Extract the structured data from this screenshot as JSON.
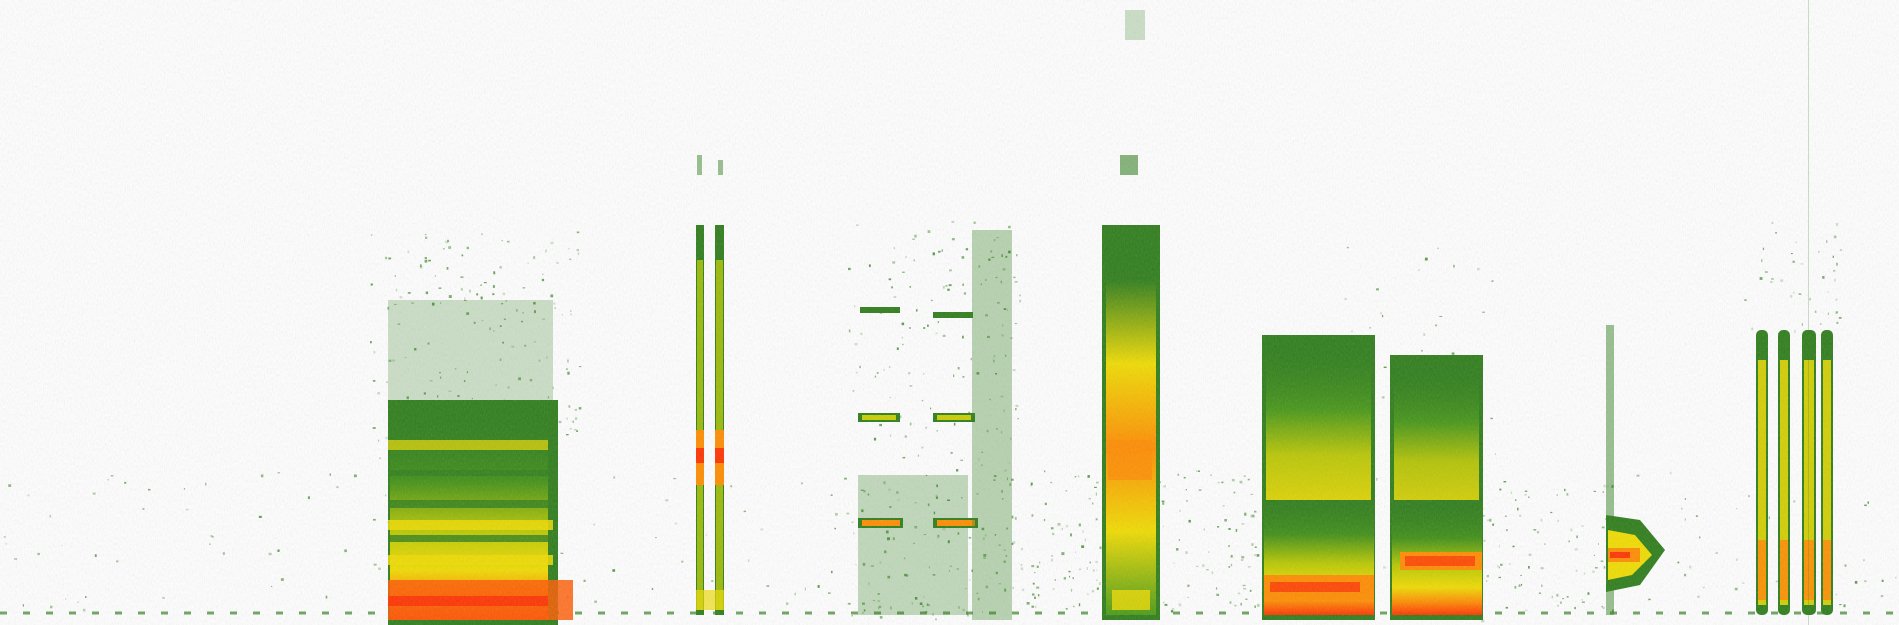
{
  "image": {
    "kind": "spectrogram",
    "background": "#ffffff",
    "palette": {
      "low": "#2e7d1a",
      "mid_low": "#4a9a16",
      "mid": "#b8c800",
      "mid_high": "#f0dc00",
      "high": "#ff8c00",
      "peak": "#ff3300"
    },
    "segments": [
      {
        "name": "broadband-block-1"
      },
      {
        "name": "narrow-pulse-pair-1"
      },
      {
        "name": "tonal-pulse-pair"
      },
      {
        "name": "tall-narrow-burst"
      },
      {
        "name": "broadband-block-2"
      },
      {
        "name": "broadband-block-3"
      },
      {
        "name": "low-tonal-burst"
      },
      {
        "name": "narrow-pulse-quartet"
      }
    ]
  }
}
